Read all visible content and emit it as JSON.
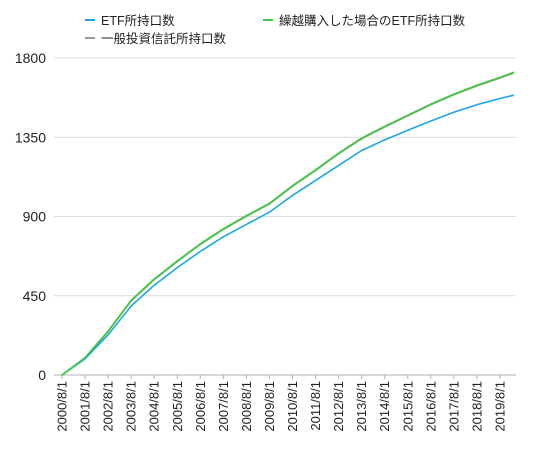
{
  "chart_data": {
    "type": "line",
    "x": [
      "2000/8/1",
      "2001/8/1",
      "2002/8/1",
      "2003/8/1",
      "2004/8/1",
      "2005/8/1",
      "2006/8/1",
      "2007/8/1",
      "2008/8/1",
      "2009/2/1",
      "2009/8/1",
      "2010/8/1",
      "2011/8/1",
      "2012/8/1",
      "2013/8/1",
      "2014/8/1",
      "2015/8/1",
      "2016/8/1",
      "2017/8/1",
      "2018/8/1",
      "2019/8/1",
      "2020/3/1"
    ],
    "x_ticks": [
      "2000/8/1",
      "2001/8/1",
      "2002/8/1",
      "2003/8/1",
      "2004/8/1",
      "2005/8/1",
      "2006/8/1",
      "2007/8/1",
      "2008/8/1",
      "2009/8/1",
      "2010/8/1",
      "2011/8/1",
      "2012/8/1",
      "2013/8/1",
      "2014/8/1",
      "2015/8/1",
      "2016/8/1",
      "2017/8/1",
      "2018/8/1",
      "2019/8/1"
    ],
    "y_ticks": [
      0,
      450,
      900,
      1350,
      1800
    ],
    "ylim": [
      0,
      1800
    ],
    "series": [
      {
        "name": "ETF所持口数",
        "color": "#1ea5e6",
        "values": [
          0,
          92,
          228,
          392,
          510,
          610,
          702,
          785,
          855,
          890,
          925,
          1020,
          1105,
          1190,
          1275,
          1335,
          1390,
          1442,
          1492,
          1535,
          1570,
          1588
        ]
      },
      {
        "name": "繰越購入した場合のETF所持口数",
        "color": "#3dcc3d",
        "values": [
          0,
          98,
          250,
          425,
          545,
          648,
          745,
          830,
          905,
          940,
          975,
          1075,
          1165,
          1260,
          1345,
          1412,
          1475,
          1538,
          1595,
          1645,
          1690,
          1718
        ]
      },
      {
        "name": "一般投資信託所持口数",
        "color": "#9a9a9a",
        "values": [
          0,
          95,
          246,
          421,
          541,
          644,
          741,
          826,
          901,
          936,
          971,
          1071,
          1161,
          1256,
          1341,
          1408,
          1471,
          1534,
          1591,
          1641,
          1686,
          1714
        ]
      }
    ],
    "grid": "horizontal",
    "legend": "top"
  }
}
